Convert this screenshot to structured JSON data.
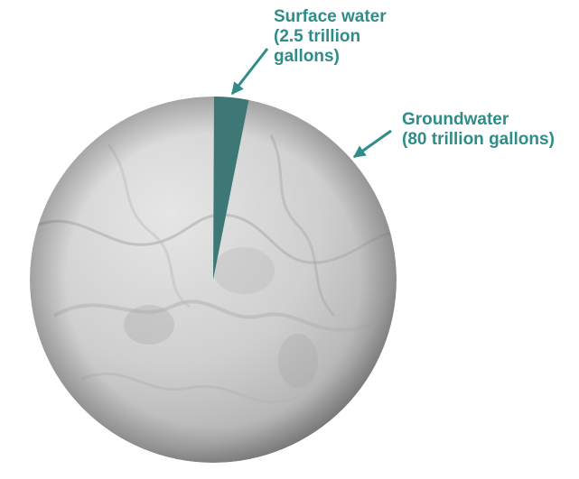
{
  "chart_data": {
    "type": "pie",
    "slices": [
      {
        "name": "Groundwater",
        "label_lines": [
          "Groundwater",
          "(80 trillion gallons)"
        ],
        "value": 80,
        "unit": "trillion gallons"
      },
      {
        "name": "Surface water",
        "label_lines": [
          "Surface water",
          "(2.5 trillion",
          "gallons)"
        ],
        "value": 2.5,
        "unit": "trillion gallons"
      }
    ],
    "title": "",
    "legend": "none"
  },
  "colors": {
    "label_text": "#2f8c88",
    "surface_slice": "#3d7876",
    "ground_slice_light": "#e3e3e3",
    "ground_slice_dark": "#9c9c9c"
  }
}
